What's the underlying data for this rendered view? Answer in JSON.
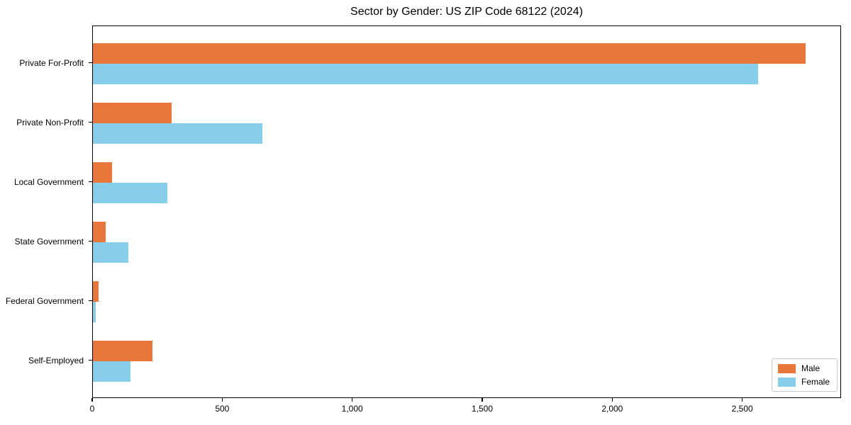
{
  "title": "Sector by Gender: US ZIP Code 68122 (2024)",
  "legend": {
    "position": "lower right",
    "items": [
      {
        "label": "Male",
        "color": "#e8773b"
      },
      {
        "label": "Female",
        "color": "#87ceeb"
      }
    ]
  },
  "chart_data": {
    "type": "bar",
    "orientation": "horizontal",
    "title": "Sector by Gender: US ZIP Code 68122 (2024)",
    "categories": [
      "Private For-Profit",
      "Private Non-Profit",
      "Local Government",
      "State Government",
      "Federal Government",
      "Self-Employed"
    ],
    "series": [
      {
        "name": "Male",
        "color": "#e8773b",
        "values": [
          2741,
          303,
          73,
          48,
          21,
          230
        ]
      },
      {
        "name": "Female",
        "color": "#87ceeb",
        "values": [
          2558,
          653,
          285,
          136,
          10,
          144
        ]
      }
    ],
    "xlabel": "",
    "ylabel": "",
    "xlim": [
      0,
      2880
    ],
    "x_ticks": [
      0,
      500,
      1000,
      1500,
      2000,
      2500
    ],
    "x_tick_labels": [
      "0",
      "500",
      "1,000",
      "1,500",
      "2,000",
      "2,500"
    ],
    "grid": false,
    "legend_position": "lower right"
  }
}
